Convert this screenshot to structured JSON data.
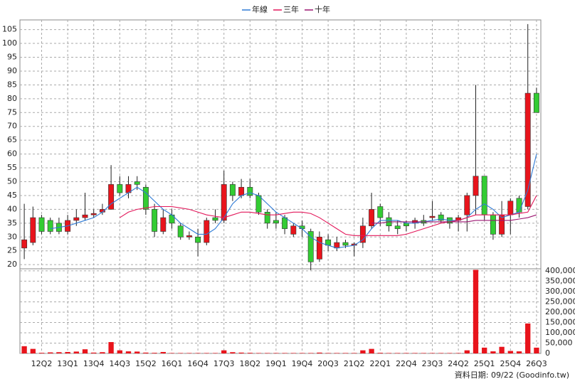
{
  "chart_data": {
    "type": "candlestick",
    "categories": [
      null,
      null,
      "12Q2",
      null,
      null,
      "13Q1",
      null,
      null,
      "13Q4",
      null,
      null,
      "14Q3",
      null,
      null,
      "15Q2",
      null,
      null,
      "16Q1",
      null,
      null,
      "16Q4",
      null,
      null,
      "17Q3",
      null,
      null,
      "18Q2",
      null,
      null,
      "19Q1",
      null,
      null,
      "19Q4",
      null,
      null,
      "20Q3",
      null,
      null,
      "21Q2",
      null,
      null,
      "22Q1",
      null,
      null,
      "22Q4",
      null,
      null,
      "23Q3",
      null,
      null,
      "24Q2",
      null,
      null,
      "25Q1",
      null,
      null,
      "25Q4",
      null,
      null,
      "26Q3"
    ],
    "open": [
      26,
      28,
      37,
      36,
      35,
      32,
      36,
      37,
      38,
      39,
      40,
      49,
      46,
      50,
      48,
      40,
      32,
      38,
      34,
      30,
      30,
      28,
      37,
      36,
      49,
      45,
      48,
      45,
      39,
      36,
      37,
      31,
      34,
      32,
      22,
      29,
      26,
      28,
      27,
      28,
      34,
      41,
      37,
      34,
      35,
      35,
      36,
      37,
      38,
      37,
      36,
      38,
      45,
      52,
      38,
      31,
      38,
      44,
      41,
      82
    ],
    "high": [
      42,
      41,
      38,
      37,
      37,
      38,
      40,
      46,
      40,
      42,
      56,
      52,
      52,
      52,
      49,
      42,
      40,
      40,
      35,
      32,
      33,
      37,
      40,
      54,
      50,
      51,
      51,
      46,
      40,
      39,
      38,
      35,
      36,
      33,
      32,
      31,
      30,
      29,
      28,
      37,
      46,
      42,
      39,
      36,
      36,
      37,
      38,
      43,
      39,
      37,
      38,
      46,
      85,
      52,
      39,
      43,
      44,
      45,
      107,
      84
    ],
    "low": [
      22,
      27,
      31,
      31,
      31,
      31,
      34,
      36,
      37,
      38,
      40,
      45,
      44,
      47,
      38,
      30,
      31,
      33,
      29,
      29,
      23,
      27,
      35,
      35,
      43,
      44,
      44,
      38,
      33,
      33,
      31,
      30,
      30,
      18,
      21,
      25,
      25,
      26,
      23,
      26,
      33,
      34,
      32,
      31,
      32,
      33,
      34,
      36,
      35,
      33,
      32,
      32,
      38,
      36,
      29,
      30,
      31,
      37,
      40,
      75
    ],
    "close": [
      29,
      37,
      32,
      32,
      32,
      36,
      37,
      38,
      38.5,
      40,
      49,
      46,
      49,
      49,
      40,
      32,
      37,
      35,
      30,
      30.5,
      28,
      36,
      36,
      49,
      45,
      48,
      45,
      39,
      35,
      35,
      33,
      34,
      33,
      21,
      30,
      27,
      28,
      27,
      27.5,
      34,
      40,
      37,
      34,
      33,
      34,
      36,
      35,
      37.5,
      36,
      35,
      37,
      45,
      52,
      38,
      31,
      38,
      43,
      39,
      82,
      75
    ],
    "up_color": "#e8141c",
    "down_color": "#33cc33",
    "ylim": [
      18.5,
      108.5
    ],
    "yticks": [
      20,
      25,
      30,
      35,
      40,
      45,
      50,
      55,
      60,
      65,
      70,
      75,
      80,
      85,
      90,
      95,
      100,
      105
    ],
    "grid": true,
    "legend": "top",
    "series": [
      {
        "name": "年線",
        "color": "#2f7bd6",
        "values": [
          null,
          null,
          null,
          33,
          33.5,
          34,
          35,
          36,
          37,
          39,
          42,
          44,
          46,
          48,
          46,
          43,
          40,
          38,
          35,
          33,
          31,
          31,
          33,
          37,
          42,
          45,
          46,
          45,
          42,
          39,
          37,
          35,
          33,
          30,
          28,
          27,
          26,
          26.5,
          27,
          29,
          33,
          36,
          36,
          36,
          35,
          35,
          35.5,
          36,
          36.5,
          36,
          36,
          37,
          40,
          42,
          40,
          37,
          38,
          39,
          47,
          60
        ]
      },
      {
        "name": "三年",
        "color": "#e3175a",
        "values": [
          null,
          null,
          null,
          null,
          null,
          null,
          null,
          null,
          null,
          null,
          null,
          37,
          39,
          40,
          40.5,
          41,
          41,
          41,
          40.5,
          40,
          39,
          38,
          37.5,
          37,
          38,
          39,
          39,
          38.5,
          38,
          38,
          38.5,
          39,
          39,
          38.5,
          37,
          35,
          33,
          31,
          30.5,
          30.5,
          30.5,
          30.5,
          30.5,
          30.5,
          31,
          32,
          33,
          34,
          35,
          35.5,
          36,
          37,
          38,
          38,
          38,
          38,
          38,
          38.5,
          39,
          45
        ]
      },
      {
        "name": "十年",
        "color": "#9b1570",
        "values": [
          null,
          null,
          null,
          null,
          null,
          null,
          null,
          null,
          null,
          null,
          null,
          null,
          null,
          null,
          null,
          null,
          null,
          null,
          null,
          null,
          null,
          null,
          null,
          null,
          null,
          null,
          null,
          null,
          null,
          null,
          null,
          null,
          null,
          null,
          null,
          null,
          null,
          null,
          null,
          null,
          35,
          35,
          35.5,
          35.5,
          35.5,
          35.5,
          35.5,
          35.5,
          35.5,
          35.5,
          35.5,
          35.5,
          36,
          36,
          36,
          36,
          36,
          36.5,
          37,
          38
        ]
      }
    ],
    "volume": {
      "color": "#e8141c",
      "values": [
        35000,
        22000,
        3000,
        5000,
        6000,
        7000,
        9000,
        20000,
        4000,
        6000,
        55000,
        15000,
        10000,
        9000,
        4000,
        3000,
        7000,
        2000,
        2000,
        2000,
        2000,
        2000,
        2000,
        15000,
        6000,
        4000,
        3000,
        2000,
        2000,
        2000,
        2000,
        2000,
        2000,
        2000,
        4000,
        2000,
        2000,
        2000,
        2000,
        15000,
        22000,
        3000,
        2000,
        2000,
        2000,
        2000,
        2000,
        2000,
        2000,
        2000,
        2000,
        15000,
        405000,
        28000,
        10000,
        32000,
        12000,
        10000,
        145000,
        28000
      ]
    },
    "y2lim": [
      0,
      410000
    ],
    "y2ticks": [
      0,
      {
        "value": 50000,
        "label": "50,000"
      },
      {
        "value": 100000,
        "label": "100,000"
      },
      {
        "value": 150000,
        "label": "150,000"
      },
      {
        "value": 200000,
        "label": "200,000"
      },
      {
        "value": 250000,
        "label": "250,000"
      },
      {
        "value": 300000,
        "label": "300,000"
      },
      {
        "value": 350000,
        "label": "350,000"
      },
      {
        "value": 400000,
        "label": "400,000"
      }
    ],
    "footer": "資料日期: 09/22 (Goodinfo.tw)"
  }
}
